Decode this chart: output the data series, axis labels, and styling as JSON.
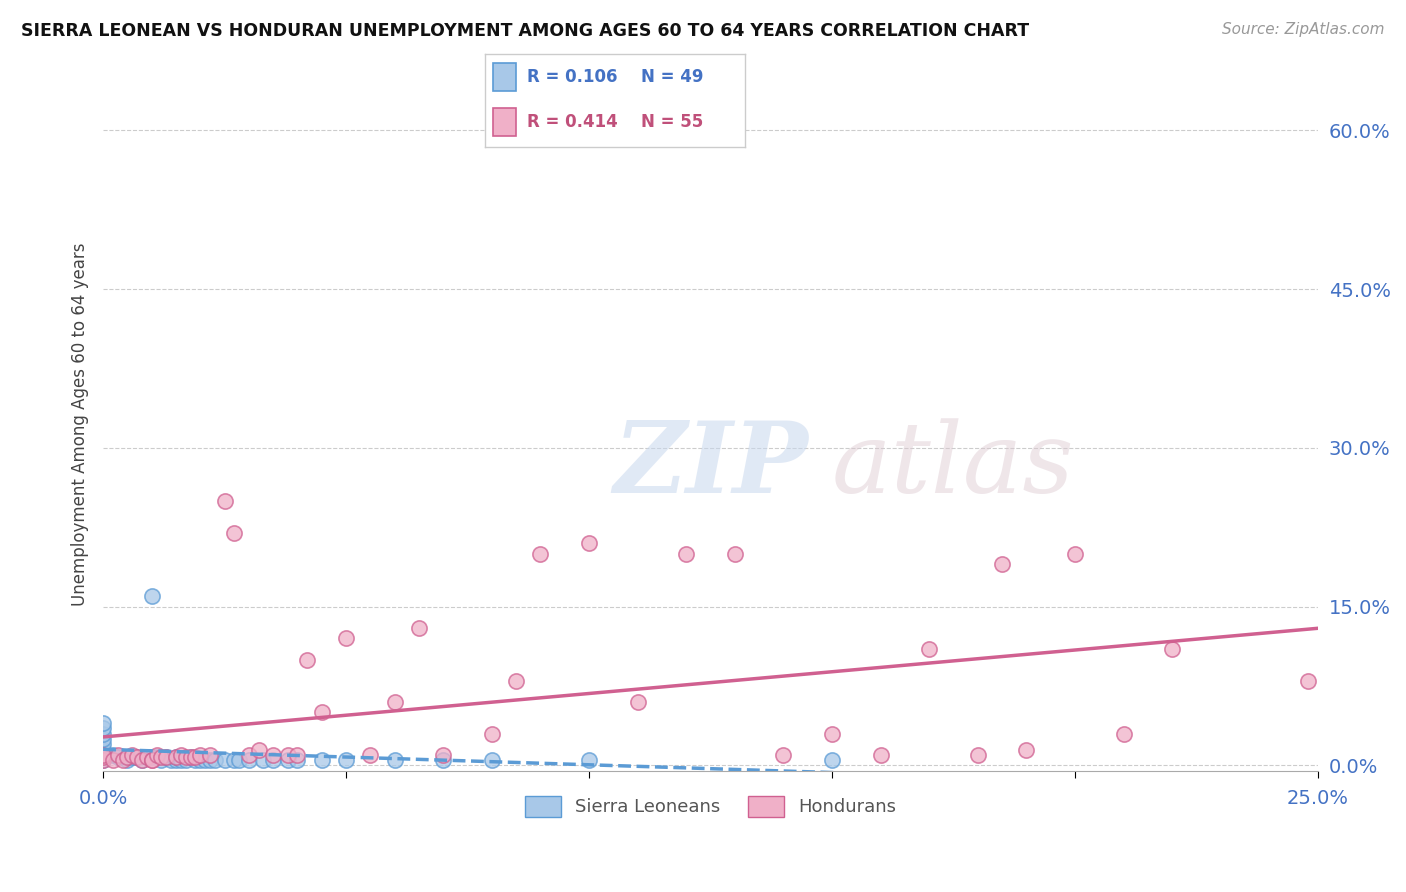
{
  "title": "SIERRA LEONEAN VS HONDURAN UNEMPLOYMENT AMONG AGES 60 TO 64 YEARS CORRELATION CHART",
  "source": "Source: ZipAtlas.com",
  "ylabel": "Unemployment Among Ages 60 to 64 years",
  "xlim": [
    0,
    0.25
  ],
  "ylim": [
    -0.005,
    0.65
  ],
  "yticks_right": [
    0.0,
    0.15,
    0.3,
    0.45,
    0.6
  ],
  "color_sierra": "#a8c8e8",
  "color_sierra_edge": "#5b9bd5",
  "color_honduras": "#f0b0c8",
  "color_honduras_edge": "#d06090",
  "color_sierra_line": "#5b9bd5",
  "color_honduras_line": "#d06090",
  "color_text_blue": "#4472c4",
  "color_text_pink": "#c0507a",
  "sierra_x": [
    0.0,
    0.0,
    0.0,
    0.0,
    0.0,
    0.0,
    0.0,
    0.0,
    0.0,
    0.0,
    0.002,
    0.003,
    0.005,
    0.005,
    0.006,
    0.007,
    0.008,
    0.009,
    0.01,
    0.01,
    0.011,
    0.012,
    0.013,
    0.014,
    0.015,
    0.015,
    0.016,
    0.017,
    0.018,
    0.019,
    0.02,
    0.021,
    0.022,
    0.023,
    0.025,
    0.027,
    0.028,
    0.03,
    0.033,
    0.035,
    0.038,
    0.04,
    0.045,
    0.05,
    0.06,
    0.07,
    0.08,
    0.1,
    0.15
  ],
  "sierra_y": [
    0.01,
    0.01,
    0.015,
    0.02,
    0.025,
    0.03,
    0.035,
    0.04,
    0.008,
    0.005,
    0.01,
    0.008,
    0.005,
    0.008,
    0.008,
    0.008,
    0.005,
    0.008,
    0.008,
    0.16,
    0.008,
    0.005,
    0.008,
    0.005,
    0.005,
    0.008,
    0.005,
    0.005,
    0.008,
    0.005,
    0.005,
    0.005,
    0.005,
    0.005,
    0.005,
    0.005,
    0.005,
    0.005,
    0.005,
    0.005,
    0.005,
    0.005,
    0.005,
    0.005,
    0.005,
    0.005,
    0.005,
    0.005,
    0.005
  ],
  "honduras_x": [
    0.0,
    0.0,
    0.0,
    0.002,
    0.003,
    0.004,
    0.005,
    0.006,
    0.007,
    0.008,
    0.009,
    0.01,
    0.01,
    0.011,
    0.012,
    0.013,
    0.015,
    0.016,
    0.017,
    0.018,
    0.019,
    0.02,
    0.022,
    0.025,
    0.027,
    0.03,
    0.032,
    0.035,
    0.038,
    0.04,
    0.042,
    0.045,
    0.05,
    0.055,
    0.06,
    0.065,
    0.07,
    0.08,
    0.085,
    0.09,
    0.1,
    0.11,
    0.12,
    0.13,
    0.14,
    0.15,
    0.16,
    0.17,
    0.18,
    0.185,
    0.19,
    0.2,
    0.21,
    0.22,
    0.248
  ],
  "honduras_y": [
    0.005,
    0.008,
    0.01,
    0.005,
    0.01,
    0.005,
    0.008,
    0.01,
    0.008,
    0.005,
    0.008,
    0.005,
    0.005,
    0.01,
    0.008,
    0.008,
    0.008,
    0.01,
    0.008,
    0.008,
    0.008,
    0.01,
    0.01,
    0.25,
    0.22,
    0.01,
    0.015,
    0.01,
    0.01,
    0.01,
    0.1,
    0.05,
    0.12,
    0.01,
    0.06,
    0.13,
    0.01,
    0.03,
    0.08,
    0.2,
    0.21,
    0.06,
    0.2,
    0.2,
    0.01,
    0.03,
    0.01,
    0.11,
    0.01,
    0.19,
    0.015,
    0.2,
    0.03,
    0.11,
    0.08
  ]
}
